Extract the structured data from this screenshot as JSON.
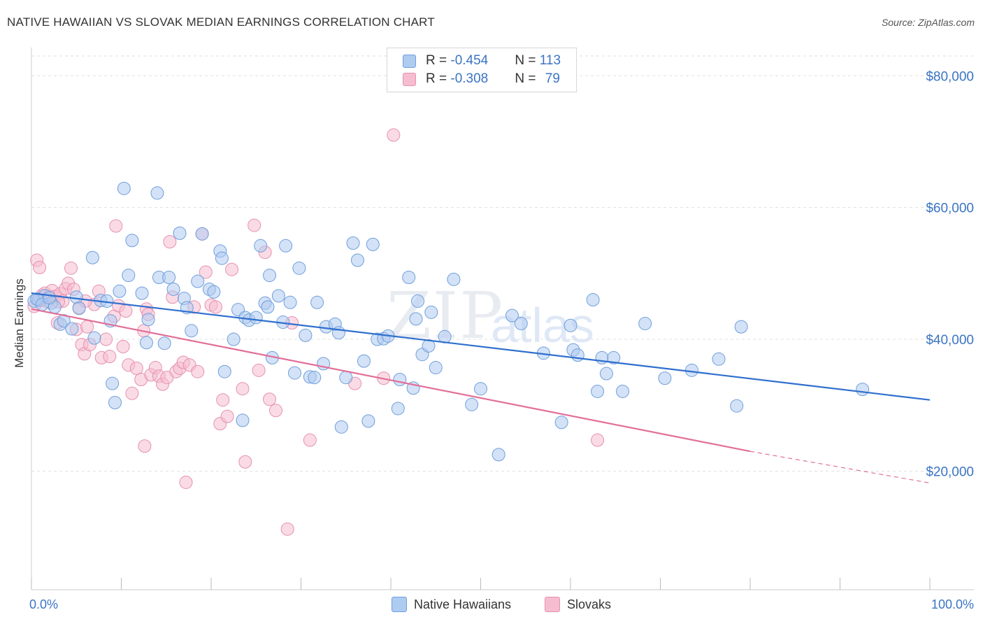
{
  "title": "NATIVE HAWAIIAN VS SLOVAK MEDIAN EARNINGS CORRELATION CHART",
  "source": "Source: ZipAtlas.com",
  "watermark": {
    "zip": "ZIP",
    "atlas": "atlas"
  },
  "legend": {
    "rows": [
      {
        "r_label": "R = ",
        "r_value": "-0.454",
        "n_label": "N = ",
        "n_value": "113"
      },
      {
        "r_label": "R = ",
        "r_value": "-0.308",
        "n_label": "N = ",
        "n_value": "79"
      }
    ]
  },
  "bottom_legend": [
    "Native Hawaiians",
    "Slovaks"
  ],
  "colors": {
    "blue_fill": "#aecbf0",
    "blue_stroke": "#6f9fdb",
    "blue_line": "#2f6fce",
    "pink_fill": "#f6bdd0",
    "pink_stroke": "#e690b0",
    "pink_line": "#e26f98",
    "grid": "#e0e0e0",
    "tick_text": "#3a74c4"
  },
  "chart_data": {
    "type": "scatter",
    "title": "NATIVE HAWAIIAN VS SLOVAK MEDIAN EARNINGS CORRELATION CHART",
    "xlabel": "",
    "ylabel": "Median Earnings",
    "xlim": [
      0,
      100
    ],
    "ylim": [
      2000,
      83000
    ],
    "x_tick_labels": [
      "0.0%",
      "100.0%"
    ],
    "y_ticks": [
      20000,
      40000,
      60000,
      80000
    ],
    "y_tick_labels": [
      "$20,000",
      "$40,000",
      "$60,000",
      "$80,000"
    ],
    "grid": true,
    "legend_position": "top-center",
    "series": [
      {
        "name": "Native Hawaiians",
        "R": -0.454,
        "N": 113,
        "trend": {
          "x": [
            0,
            100
          ],
          "y": [
            47000,
            30800
          ]
        },
        "points": [
          [
            0.3,
            45800
          ],
          [
            0.8,
            46000
          ],
          [
            1.5,
            46600
          ],
          [
            2.2,
            45500
          ],
          [
            2.6,
            44900
          ],
          [
            3.2,
            42300
          ],
          [
            3.6,
            42800
          ],
          [
            4.5,
            41600
          ],
          [
            5.0,
            46400
          ],
          [
            5.3,
            44700
          ],
          [
            6.8,
            52400
          ],
          [
            7.0,
            40200
          ],
          [
            7.7,
            45900
          ],
          [
            8.8,
            42800
          ],
          [
            9.0,
            33300
          ],
          [
            9.3,
            30400
          ],
          [
            9.8,
            47300
          ],
          [
            10.3,
            62900
          ],
          [
            10.8,
            49700
          ],
          [
            11.2,
            55000
          ],
          [
            12.3,
            47000
          ],
          [
            12.8,
            39500
          ],
          [
            13.0,
            43000
          ],
          [
            14.0,
            62200
          ],
          [
            14.2,
            49400
          ],
          [
            14.8,
            39400
          ],
          [
            15.3,
            49400
          ],
          [
            15.8,
            47600
          ],
          [
            16.5,
            56100
          ],
          [
            17.0,
            46200
          ],
          [
            17.3,
            44800
          ],
          [
            17.8,
            41300
          ],
          [
            18.5,
            48800
          ],
          [
            19.0,
            56000
          ],
          [
            19.8,
            47600
          ],
          [
            20.3,
            47200
          ],
          [
            21.0,
            53400
          ],
          [
            21.2,
            52300
          ],
          [
            21.5,
            35100
          ],
          [
            22.5,
            40000
          ],
          [
            23.0,
            44500
          ],
          [
            23.5,
            27700
          ],
          [
            23.8,
            43300
          ],
          [
            24.2,
            42900
          ],
          [
            25.0,
            43300
          ],
          [
            25.5,
            54200
          ],
          [
            26.0,
            45500
          ],
          [
            26.5,
            49700
          ],
          [
            26.8,
            37200
          ],
          [
            27.5,
            46600
          ],
          [
            28.0,
            42600
          ],
          [
            28.3,
            54200
          ],
          [
            28.8,
            45600
          ],
          [
            29.3,
            34900
          ],
          [
            29.8,
            50800
          ],
          [
            30.5,
            40600
          ],
          [
            31.0,
            34300
          ],
          [
            31.5,
            34200
          ],
          [
            31.8,
            45600
          ],
          [
            32.5,
            36300
          ],
          [
            32.8,
            41900
          ],
          [
            33.8,
            42300
          ],
          [
            34.2,
            41000
          ],
          [
            34.5,
            26700
          ],
          [
            35.0,
            34200
          ],
          [
            35.8,
            54600
          ],
          [
            36.3,
            52000
          ],
          [
            37.0,
            36700
          ],
          [
            37.5,
            27600
          ],
          [
            38.0,
            54400
          ],
          [
            38.5,
            40000
          ],
          [
            39.2,
            40100
          ],
          [
            39.7,
            40500
          ],
          [
            40.8,
            29500
          ],
          [
            41.0,
            33900
          ],
          [
            42.0,
            49400
          ],
          [
            42.5,
            32600
          ],
          [
            42.8,
            43100
          ],
          [
            43.0,
            45800
          ],
          [
            43.5,
            37700
          ],
          [
            44.2,
            39000
          ],
          [
            44.5,
            44100
          ],
          [
            45.0,
            35700
          ],
          [
            46.0,
            40400
          ],
          [
            47.0,
            49100
          ],
          [
            49.0,
            30100
          ],
          [
            50.0,
            32500
          ],
          [
            52.0,
            22500
          ],
          [
            53.5,
            43600
          ],
          [
            54.5,
            42400
          ],
          [
            57.0,
            37900
          ],
          [
            59.0,
            27400
          ],
          [
            60.0,
            42100
          ],
          [
            60.3,
            38400
          ],
          [
            60.8,
            37600
          ],
          [
            62.5,
            46000
          ],
          [
            63.0,
            32100
          ],
          [
            63.5,
            37200
          ],
          [
            64.0,
            34800
          ],
          [
            64.8,
            37200
          ],
          [
            65.8,
            32100
          ],
          [
            68.3,
            42400
          ],
          [
            70.5,
            34100
          ],
          [
            73.5,
            35300
          ],
          [
            76.5,
            37000
          ],
          [
            78.5,
            29900
          ],
          [
            79.0,
            41900
          ],
          [
            92.5,
            32400
          ],
          [
            0.6,
            46100
          ],
          [
            1.2,
            45300
          ],
          [
            2.0,
            46300
          ],
          [
            8.4,
            45800
          ],
          [
            26.3,
            44900
          ]
        ]
      },
      {
        "name": "Slovaks",
        "R": -0.308,
        "N": 79,
        "trend": {
          "x": [
            0,
            80,
            100
          ],
          "y": [
            44600,
            23000,
            18200
          ],
          "solid_until": 80
        },
        "points": [
          [
            0.3,
            45000
          ],
          [
            0.6,
            52000
          ],
          [
            0.9,
            50900
          ],
          [
            1.2,
            46700
          ],
          [
            1.5,
            47000
          ],
          [
            1.8,
            45700
          ],
          [
            2.0,
            46500
          ],
          [
            2.3,
            47400
          ],
          [
            2.6,
            46500
          ],
          [
            2.9,
            42500
          ],
          [
            3.2,
            46900
          ],
          [
            3.5,
            45800
          ],
          [
            3.8,
            47700
          ],
          [
            4.1,
            48500
          ],
          [
            4.4,
            50800
          ],
          [
            4.7,
            47600
          ],
          [
            5.0,
            41500
          ],
          [
            5.3,
            44800
          ],
          [
            5.6,
            39200
          ],
          [
            5.9,
            37800
          ],
          [
            6.2,
            41900
          ],
          [
            6.5,
            39200
          ],
          [
            7.0,
            45300
          ],
          [
            7.5,
            47300
          ],
          [
            7.8,
            37200
          ],
          [
            8.3,
            40000
          ],
          [
            8.7,
            37400
          ],
          [
            9.2,
            43500
          ],
          [
            9.7,
            45100
          ],
          [
            10.2,
            38900
          ],
          [
            10.5,
            44300
          ],
          [
            10.8,
            36100
          ],
          [
            11.2,
            31800
          ],
          [
            11.7,
            35600
          ],
          [
            12.2,
            33900
          ],
          [
            12.6,
            23800
          ],
          [
            12.8,
            44600
          ],
          [
            13.0,
            43800
          ],
          [
            13.3,
            34600
          ],
          [
            13.8,
            35700
          ],
          [
            14.2,
            34400
          ],
          [
            14.6,
            33200
          ],
          [
            15.1,
            34200
          ],
          [
            15.4,
            54800
          ],
          [
            15.7,
            46400
          ],
          [
            16.1,
            35100
          ],
          [
            16.5,
            35600
          ],
          [
            16.9,
            36500
          ],
          [
            17.2,
            18300
          ],
          [
            17.6,
            36100
          ],
          [
            18.1,
            44900
          ],
          [
            18.5,
            35100
          ],
          [
            19.0,
            56000
          ],
          [
            19.4,
            50200
          ],
          [
            20.0,
            45200
          ],
          [
            20.5,
            44900
          ],
          [
            21.0,
            27200
          ],
          [
            21.3,
            30800
          ],
          [
            21.8,
            28300
          ],
          [
            22.3,
            50600
          ],
          [
            23.5,
            32500
          ],
          [
            23.8,
            21400
          ],
          [
            24.8,
            57300
          ],
          [
            25.3,
            35300
          ],
          [
            26.0,
            53200
          ],
          [
            26.5,
            30900
          ],
          [
            27.2,
            29200
          ],
          [
            28.5,
            11200
          ],
          [
            29.0,
            42500
          ],
          [
            31.0,
            24700
          ],
          [
            36.0,
            33300
          ],
          [
            39.2,
            34100
          ],
          [
            40.3,
            71000
          ],
          [
            63.0,
            24700
          ],
          [
            1.0,
            45900
          ],
          [
            3.0,
            45700
          ],
          [
            9.4,
            57200
          ],
          [
            12.5,
            41300
          ],
          [
            6.0,
            45800
          ]
        ]
      }
    ]
  }
}
